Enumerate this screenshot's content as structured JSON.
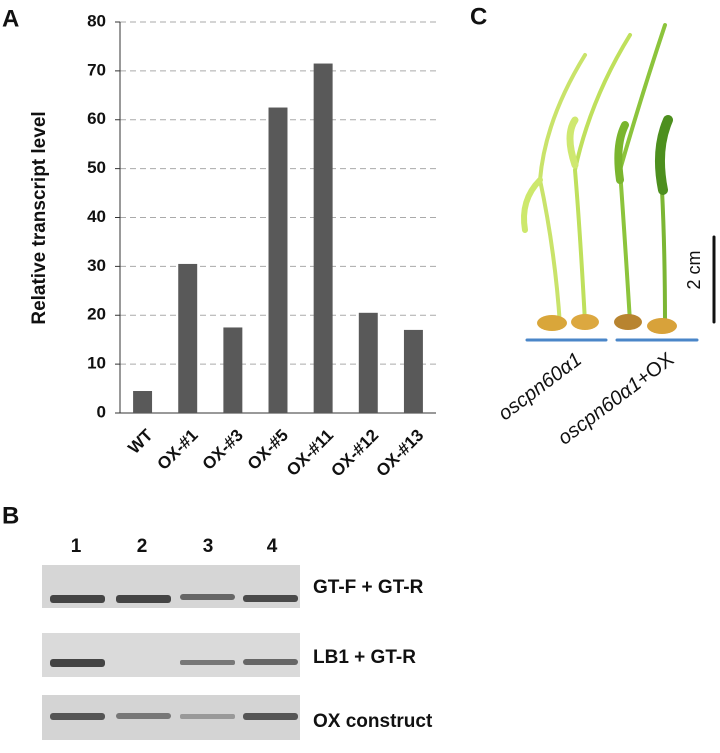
{
  "chart_data": {
    "type": "bar",
    "y_label": "Relative transcript level",
    "categories": [
      "WT",
      "OX-#1",
      "OX-#3",
      "OX-#5",
      "OX-#11",
      "OX-#12",
      "OX-#13"
    ],
    "values": [
      4.5,
      30.5,
      17.5,
      62.5,
      71.5,
      20.5,
      17
    ],
    "color": "#595959",
    "ylim": [
      0,
      80
    ],
    "yticks": [
      0,
      10,
      20,
      30,
      40,
      50,
      60,
      70,
      80
    ],
    "grid": true
  },
  "panel_labels": [
    "A",
    "B",
    "C"
  ],
  "gel": {
    "lanes": [
      "1",
      "2",
      "3",
      "4"
    ],
    "rows": [
      "GT-F + GT-R",
      "LB1 + GT-R",
      "OX construct"
    ]
  },
  "photo": {
    "genotypes": [
      {
        "gene": "oscpn60α1"
      },
      {
        "gene": "oscpn60α1",
        "suffix": "+OX"
      }
    ],
    "scale": "2 cm"
  }
}
